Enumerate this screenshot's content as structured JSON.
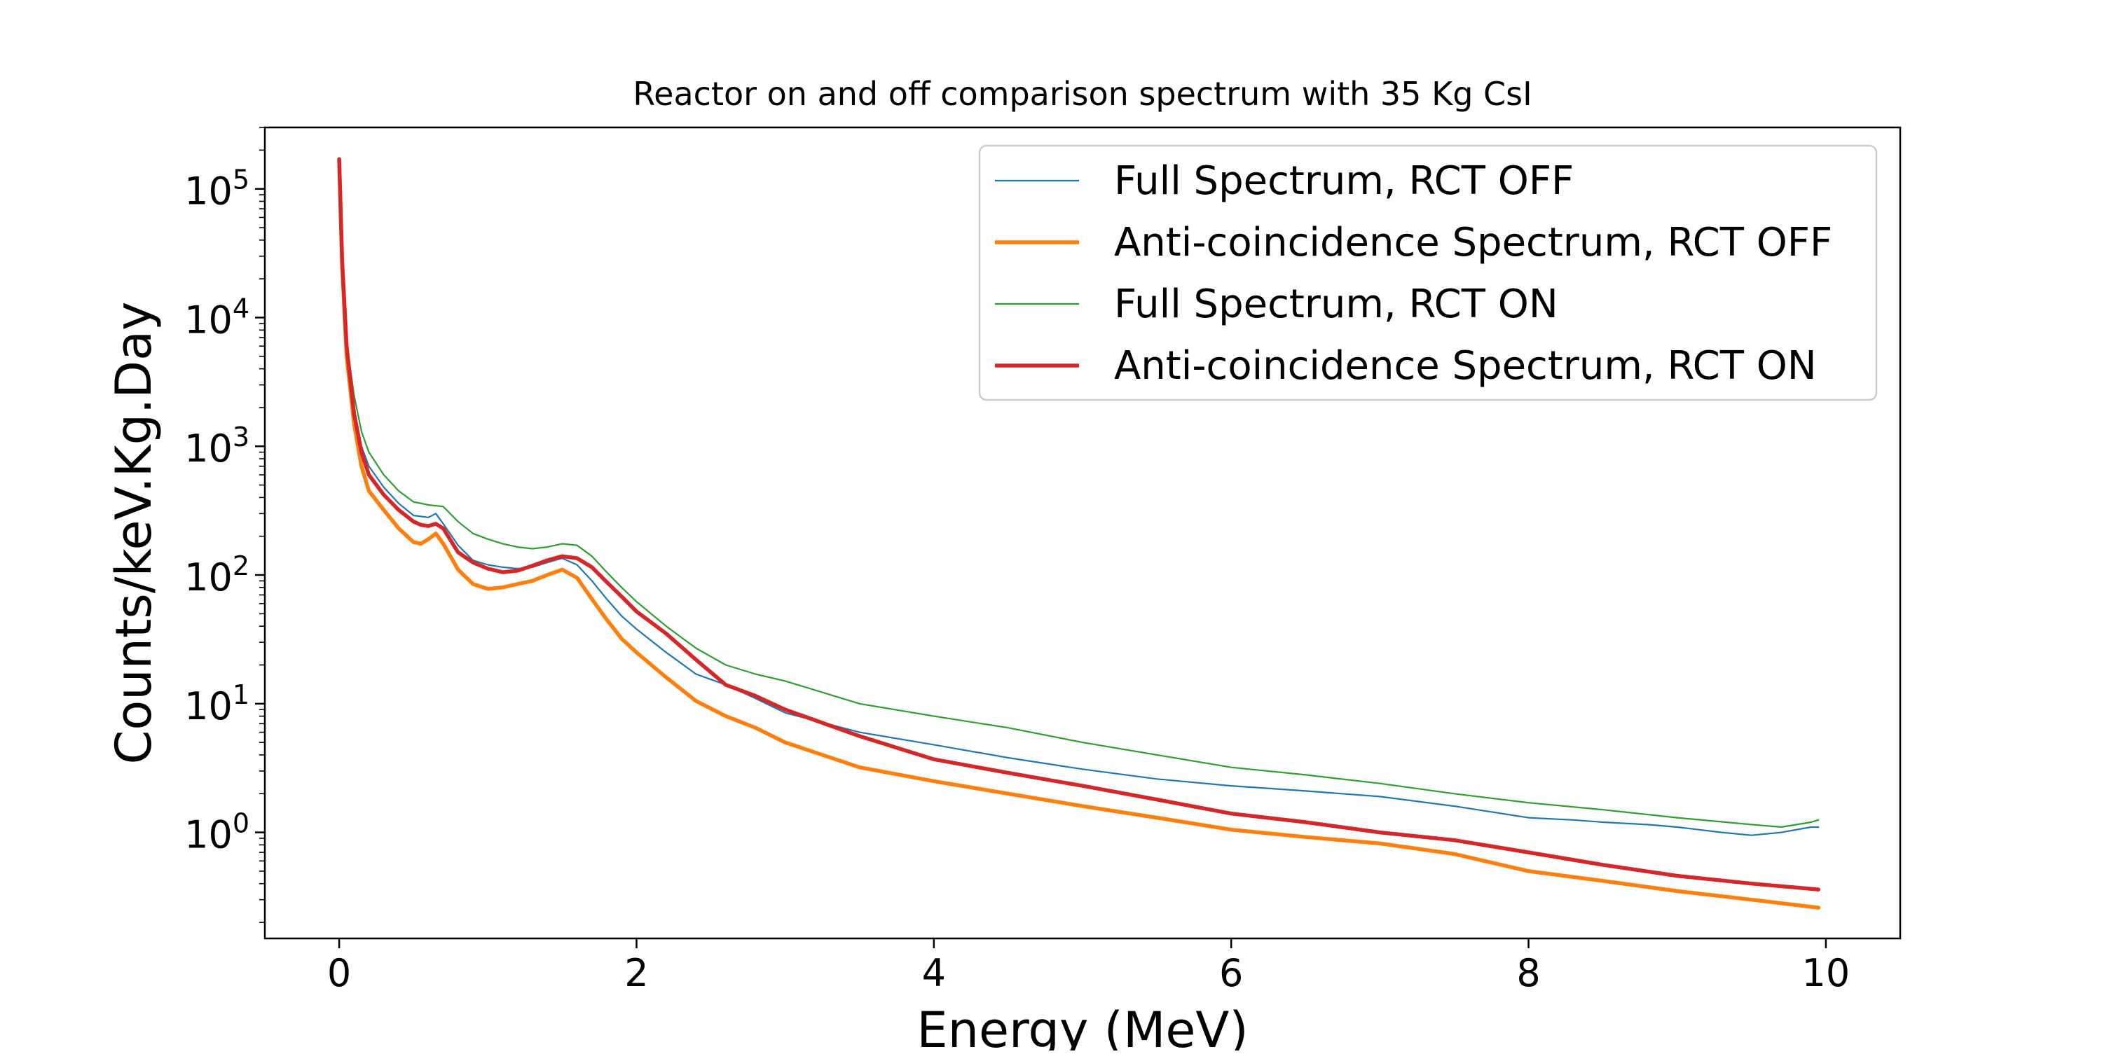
{
  "chart_data": {
    "type": "line",
    "title": "Reactor on and off comparison spectrum with 35 Kg CsI",
    "xlabel": "Energy (MeV)",
    "ylabel": "Counts/keV.Kg.Day",
    "xscale": "linear",
    "yscale": "log",
    "xlim": [
      -0.5,
      10.5
    ],
    "ylim": [
      0.15,
      300000
    ],
    "xticks": [
      0,
      2,
      4,
      6,
      8,
      10
    ],
    "xtick_labels": [
      "0",
      "2",
      "4",
      "6",
      "8",
      "10"
    ],
    "yticks": [
      1,
      10,
      100,
      1000,
      10000,
      100000
    ],
    "ytick_bases": [
      "10",
      "10",
      "10",
      "10",
      "10",
      "10"
    ],
    "ytick_exponents": [
      "0",
      "1",
      "2",
      "3",
      "4",
      "5"
    ],
    "legend_position": "top-right",
    "grid": false,
    "series": [
      {
        "name": "Full Spectrum, RCT OFF",
        "color": "#1f77b4",
        "style": "thin",
        "x": [
          0.0,
          0.02,
          0.05,
          0.1,
          0.15,
          0.2,
          0.3,
          0.4,
          0.5,
          0.6,
          0.65,
          0.7,
          0.8,
          0.9,
          1.0,
          1.1,
          1.2,
          1.3,
          1.4,
          1.5,
          1.6,
          1.7,
          1.8,
          1.9,
          2.0,
          2.2,
          2.4,
          2.6,
          2.8,
          3.0,
          3.5,
          4.0,
          4.5,
          5.0,
          5.5,
          6.0,
          6.5,
          7.0,
          7.5,
          8.0,
          8.3,
          8.5,
          8.8,
          9.0,
          9.3,
          9.5,
          9.7,
          9.9,
          9.95
        ],
        "y": [
          170000,
          30000,
          6000,
          2000,
          1000,
          700,
          480,
          360,
          290,
          280,
          300,
          250,
          170,
          130,
          120,
          115,
          112,
          115,
          125,
          135,
          120,
          90,
          65,
          48,
          38,
          25,
          17,
          14,
          11,
          8.5,
          6.0,
          4.8,
          3.8,
          3.1,
          2.6,
          2.3,
          2.1,
          1.9,
          1.6,
          1.3,
          1.25,
          1.2,
          1.15,
          1.1,
          1.0,
          0.95,
          1.0,
          1.1,
          1.1
        ]
      },
      {
        "name": "Anti-coincidence Spectrum, RCT OFF",
        "color": "#ff7f0e",
        "style": "thick",
        "x": [
          0.0,
          0.02,
          0.05,
          0.1,
          0.15,
          0.2,
          0.3,
          0.4,
          0.5,
          0.55,
          0.6,
          0.65,
          0.7,
          0.8,
          0.9,
          1.0,
          1.1,
          1.2,
          1.3,
          1.4,
          1.5,
          1.6,
          1.7,
          1.8,
          1.9,
          2.0,
          2.2,
          2.4,
          2.6,
          2.8,
          3.0,
          3.5,
          4.0,
          4.5,
          5.0,
          5.5,
          6.0,
          6.5,
          7.0,
          7.5,
          8.0,
          8.5,
          9.0,
          9.5,
          9.95
        ],
        "y": [
          170000,
          25000,
          5000,
          1500,
          700,
          450,
          320,
          230,
          180,
          175,
          190,
          210,
          175,
          110,
          85,
          78,
          80,
          85,
          90,
          100,
          110,
          95,
          65,
          45,
          32,
          25,
          16,
          10.5,
          8,
          6.5,
          5.0,
          3.2,
          2.5,
          2.0,
          1.6,
          1.3,
          1.05,
          0.92,
          0.82,
          0.68,
          0.5,
          0.42,
          0.35,
          0.3,
          0.26
        ]
      },
      {
        "name": "Full Spectrum, RCT ON",
        "color": "#2ca02c",
        "style": "thin",
        "x": [
          0.0,
          0.02,
          0.05,
          0.1,
          0.15,
          0.2,
          0.3,
          0.4,
          0.5,
          0.6,
          0.7,
          0.8,
          0.9,
          1.0,
          1.1,
          1.2,
          1.3,
          1.4,
          1.5,
          1.6,
          1.7,
          1.8,
          1.9,
          2.0,
          2.2,
          2.4,
          2.6,
          2.8,
          3.0,
          3.5,
          4.0,
          4.5,
          5.0,
          5.5,
          6.0,
          6.5,
          7.0,
          7.5,
          8.0,
          8.5,
          9.0,
          9.5,
          9.7,
          9.9,
          9.95
        ],
        "y": [
          170000,
          30000,
          6500,
          2500,
          1300,
          900,
          600,
          450,
          370,
          350,
          340,
          260,
          210,
          190,
          175,
          165,
          160,
          165,
          175,
          170,
          140,
          105,
          80,
          62,
          40,
          27,
          20,
          17,
          15,
          10,
          8.0,
          6.5,
          5.0,
          4.0,
          3.2,
          2.8,
          2.4,
          2.0,
          1.7,
          1.5,
          1.3,
          1.15,
          1.1,
          1.2,
          1.25
        ]
      },
      {
        "name": "Anti-coincidence Spectrum, RCT ON",
        "color": "#d62728",
        "style": "thick",
        "x": [
          0.0,
          0.02,
          0.05,
          0.1,
          0.15,
          0.2,
          0.3,
          0.4,
          0.5,
          0.55,
          0.6,
          0.65,
          0.7,
          0.8,
          0.9,
          1.0,
          1.1,
          1.2,
          1.3,
          1.4,
          1.5,
          1.6,
          1.7,
          1.8,
          1.9,
          2.0,
          2.2,
          2.4,
          2.6,
          2.8,
          3.0,
          3.5,
          4.0,
          4.5,
          5.0,
          5.5,
          6.0,
          6.5,
          7.0,
          7.5,
          8.0,
          8.5,
          9.0,
          9.5,
          9.95
        ],
        "y": [
          170000,
          28000,
          6000,
          1800,
          900,
          600,
          420,
          320,
          260,
          245,
          240,
          250,
          230,
          150,
          125,
          112,
          105,
          108,
          118,
          130,
          140,
          135,
          115,
          88,
          68,
          52,
          35,
          22,
          14,
          11.5,
          9.0,
          5.6,
          3.7,
          2.9,
          2.3,
          1.8,
          1.4,
          1.2,
          1.0,
          0.87,
          0.7,
          0.56,
          0.46,
          0.4,
          0.36
        ]
      }
    ]
  }
}
